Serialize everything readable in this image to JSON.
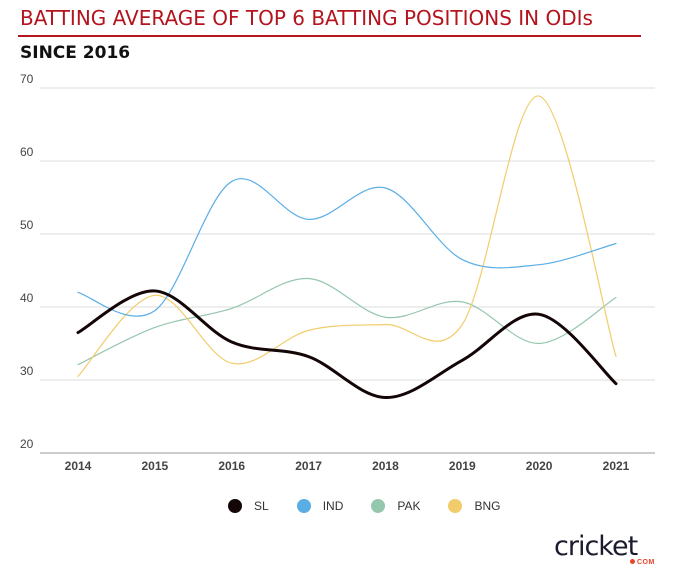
{
  "header": {
    "title": "BATTING AVERAGE OF TOP 6 BATTING POSITIONS IN ODIs",
    "subtitle": "SINCE 2016"
  },
  "colors": {
    "title": "#b3141e",
    "SL": "#140606",
    "IND": "#5aaee6",
    "PAK": "#95c7ae",
    "BNG": "#f2cc6b"
  },
  "chart_data": {
    "type": "line",
    "x": [
      "2014",
      "2015",
      "2016",
      "2017",
      "2018",
      "2019",
      "2020",
      "2021"
    ],
    "ylim": [
      20,
      70
    ],
    "yticks": [
      "20",
      "30",
      "40",
      "50",
      "60",
      "70"
    ],
    "grid": true,
    "legend_position": "bottom",
    "series": [
      {
        "name": "SL",
        "values": [
          36.5,
          42.2,
          35.2,
          33.2,
          27.6,
          32.7,
          39.0,
          29.5
        ]
      },
      {
        "name": "IND",
        "values": [
          42.0,
          39.5,
          57.2,
          52.0,
          56.3,
          46.5,
          45.8,
          48.7
        ]
      },
      {
        "name": "PAK",
        "values": [
          32.1,
          37.2,
          39.8,
          43.9,
          38.6,
          40.7,
          35.0,
          41.3
        ]
      },
      {
        "name": "BNG",
        "values": [
          30.5,
          41.6,
          32.3,
          36.8,
          37.6,
          37.6,
          68.9,
          33.2
        ]
      }
    ]
  },
  "legend": [
    {
      "label": "SL",
      "color": "#140606"
    },
    {
      "label": "IND",
      "color": "#5aaee6"
    },
    {
      "label": "PAK",
      "color": "#95c7ae"
    },
    {
      "label": "BNG",
      "color": "#f2cc6b"
    }
  ],
  "brand": {
    "word": "cricket",
    "sub": "COM"
  }
}
